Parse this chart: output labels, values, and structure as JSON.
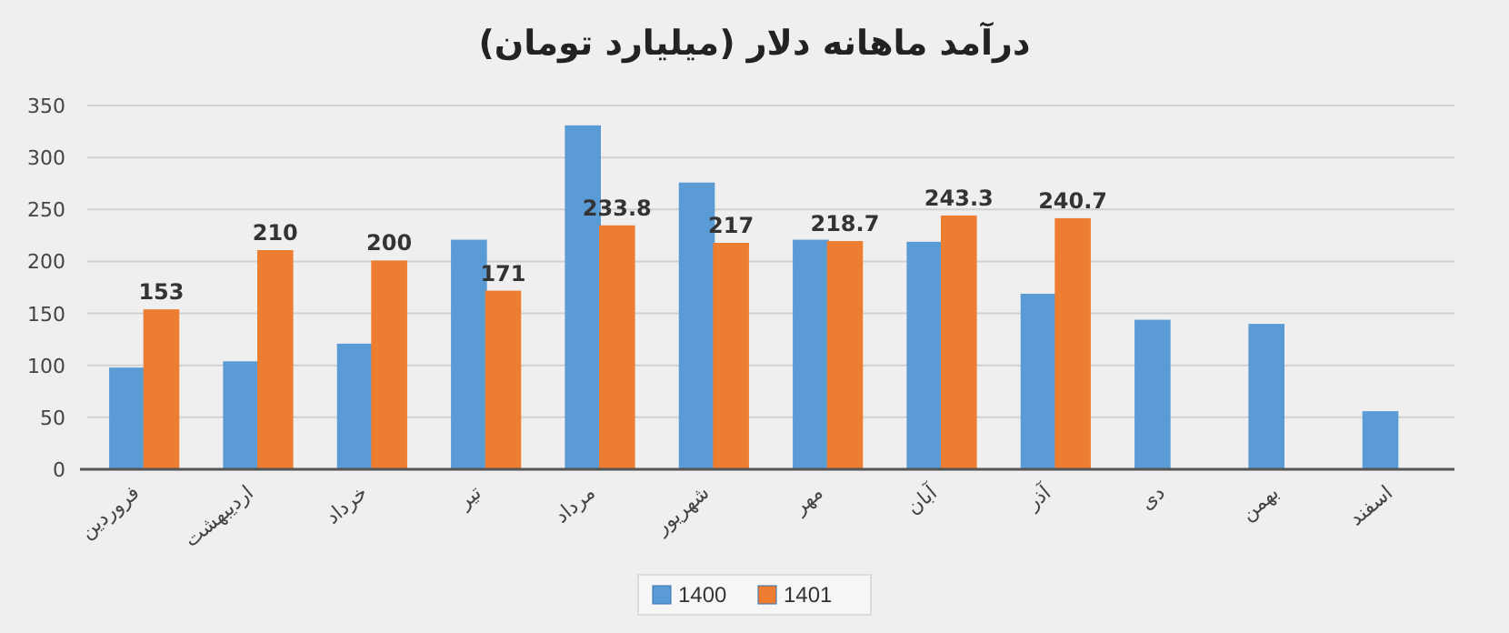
{
  "chart_data": {
    "type": "bar",
    "title": "درآمد ماهانه دلار (میلیارد تومان)",
    "categories": [
      "فروردین",
      "اردیبهشت",
      "خرداد",
      "تیر",
      "مرداد",
      "شهریور",
      "مهر",
      "آبان",
      "آذر",
      "دی",
      "بهمن",
      "اسفند"
    ],
    "series": [
      {
        "name": "1400",
        "color": "#5b9bd5",
        "values": [
          97,
          103,
          120,
          220,
          330,
          275,
          220,
          218,
          168,
          143,
          139,
          55
        ]
      },
      {
        "name": "1401",
        "color": "#ed7d31",
        "values": [
          153,
          210,
          200,
          171,
          233.8,
          217,
          218.7,
          243.3,
          240.7,
          null,
          null,
          null
        ],
        "value_labels": [
          "153",
          "210",
          "200",
          "171",
          "233.8",
          "217",
          "218.7",
          "243.3",
          "240.7",
          null,
          null,
          null
        ]
      }
    ],
    "ylim": [
      0,
      350
    ],
    "yticks": [
      0,
      50,
      100,
      150,
      200,
      250,
      300,
      350
    ],
    "grid": "y",
    "legend": "bottom"
  }
}
